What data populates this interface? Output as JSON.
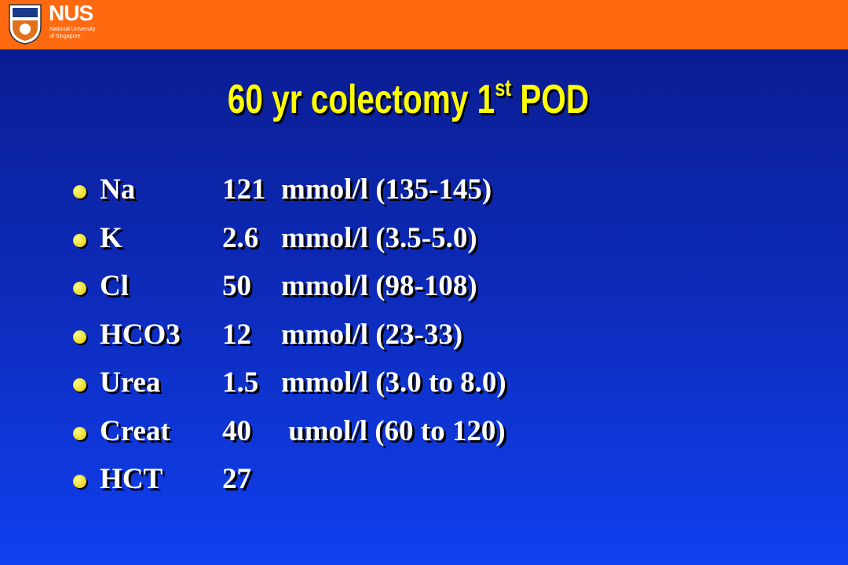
{
  "logo": {
    "name": "NUS",
    "line1": "National University",
    "line2": "of Singapore"
  },
  "title": {
    "main": "60 yr colectomy 1",
    "sup": "st",
    "end": "POD"
  },
  "items": [
    {
      "label": "Na",
      "value": "121",
      "detail": "mmol/l (135-145)"
    },
    {
      "label": "K",
      "value": "2.6",
      "detail": "mmol/l (3.5-5.0)"
    },
    {
      "label": "Cl",
      "value": "50",
      "detail": "mmol/l (98-108)"
    },
    {
      "label": "HCO3",
      "value": "12",
      "detail": "mmol/l (23-33)"
    },
    {
      "label": "Urea",
      "value": "1.5",
      "detail": "mmol/l (3.0 to 8.0)"
    },
    {
      "label": "Creat",
      "value": "40",
      "detail": " umol/l (60 to 120)"
    },
    {
      "label": "HCT",
      "value": "27"
    }
  ]
}
